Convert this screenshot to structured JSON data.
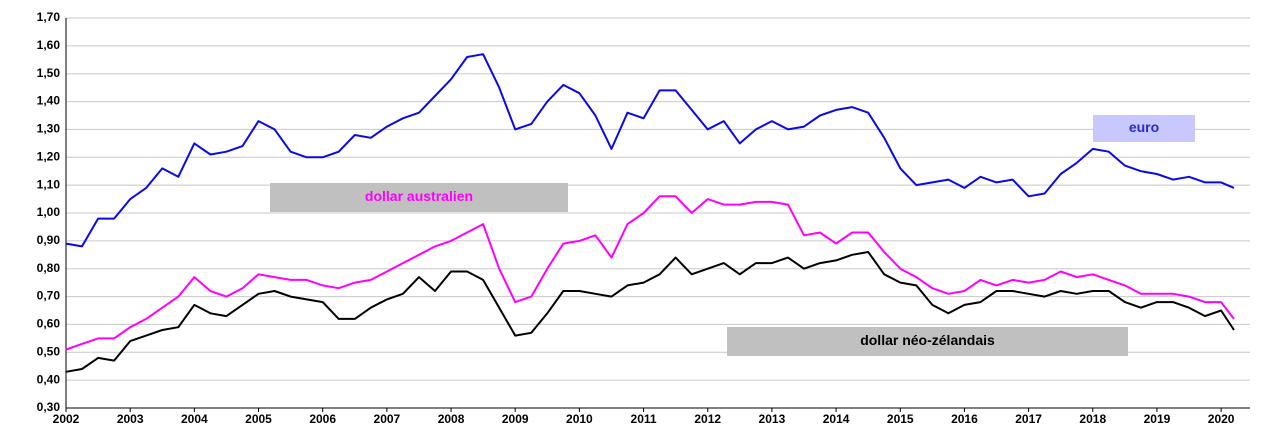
{
  "chart_data": {
    "type": "line",
    "x": [
      2002,
      2002.25,
      2002.5,
      2002.75,
      2003,
      2003.25,
      2003.5,
      2003.75,
      2004,
      2004.25,
      2004.5,
      2004.75,
      2005,
      2005.25,
      2005.5,
      2005.75,
      2006,
      2006.25,
      2006.5,
      2006.75,
      2007,
      2007.25,
      2007.5,
      2007.75,
      2008,
      2008.25,
      2008.5,
      2008.75,
      2009,
      2009.25,
      2009.5,
      2009.75,
      2010,
      2010.25,
      2010.5,
      2010.75,
      2011,
      2011.25,
      2011.5,
      2011.75,
      2012,
      2012.25,
      2012.5,
      2012.75,
      2013,
      2013.25,
      2013.5,
      2013.75,
      2014,
      2014.25,
      2014.5,
      2014.75,
      2015,
      2015.25,
      2015.5,
      2015.75,
      2016,
      2016.25,
      2016.5,
      2016.75,
      2017,
      2017.25,
      2017.5,
      2017.75,
      2018,
      2018.25,
      2018.5,
      2018.75,
      2019,
      2019.25,
      2019.5,
      2019.75,
      2020,
      2020.2
    ],
    "series": [
      {
        "name": "euro",
        "color": "#0a0ae6",
        "values": [
          0.89,
          0.88,
          0.98,
          0.98,
          1.05,
          1.09,
          1.16,
          1.13,
          1.25,
          1.21,
          1.22,
          1.24,
          1.33,
          1.3,
          1.22,
          1.2,
          1.2,
          1.22,
          1.28,
          1.27,
          1.31,
          1.34,
          1.36,
          1.42,
          1.48,
          1.56,
          1.57,
          1.45,
          1.3,
          1.32,
          1.4,
          1.46,
          1.43,
          1.35,
          1.23,
          1.36,
          1.34,
          1.44,
          1.44,
          1.37,
          1.3,
          1.33,
          1.25,
          1.3,
          1.33,
          1.3,
          1.31,
          1.35,
          1.37,
          1.38,
          1.36,
          1.27,
          1.16,
          1.1,
          1.11,
          1.12,
          1.09,
          1.13,
          1.11,
          1.12,
          1.06,
          1.07,
          1.14,
          1.18,
          1.23,
          1.22,
          1.17,
          1.15,
          1.14,
          1.12,
          1.13,
          1.11,
          1.11,
          1.09
        ]
      },
      {
        "name": "dollar australien",
        "color": "#ff00ff",
        "values": [
          0.51,
          0.53,
          0.55,
          0.55,
          0.59,
          0.62,
          0.66,
          0.7,
          0.77,
          0.72,
          0.7,
          0.73,
          0.78,
          0.77,
          0.76,
          0.76,
          0.74,
          0.73,
          0.75,
          0.76,
          0.79,
          0.82,
          0.85,
          0.88,
          0.9,
          0.93,
          0.96,
          0.8,
          0.68,
          0.7,
          0.8,
          0.89,
          0.9,
          0.92,
          0.84,
          0.96,
          1.0,
          1.06,
          1.06,
          1.0,
          1.05,
          1.03,
          1.03,
          1.04,
          1.04,
          1.03,
          0.92,
          0.93,
          0.89,
          0.93,
          0.93,
          0.86,
          0.8,
          0.77,
          0.73,
          0.71,
          0.72,
          0.76,
          0.74,
          0.76,
          0.75,
          0.76,
          0.79,
          0.77,
          0.78,
          0.76,
          0.74,
          0.71,
          0.71,
          0.71,
          0.7,
          0.68,
          0.68,
          0.62
        ]
      },
      {
        "name": "dollar néo-zélandais",
        "color": "#000000",
        "values": [
          0.43,
          0.44,
          0.48,
          0.47,
          0.54,
          0.56,
          0.58,
          0.59,
          0.67,
          0.64,
          0.63,
          0.67,
          0.71,
          0.72,
          0.7,
          0.69,
          0.68,
          0.62,
          0.62,
          0.66,
          0.69,
          0.71,
          0.77,
          0.72,
          0.79,
          0.79,
          0.76,
          0.66,
          0.56,
          0.57,
          0.64,
          0.72,
          0.72,
          0.71,
          0.7,
          0.74,
          0.75,
          0.78,
          0.84,
          0.78,
          0.8,
          0.82,
          0.78,
          0.82,
          0.82,
          0.84,
          0.8,
          0.82,
          0.83,
          0.85,
          0.86,
          0.78,
          0.75,
          0.74,
          0.67,
          0.64,
          0.67,
          0.68,
          0.72,
          0.72,
          0.71,
          0.7,
          0.72,
          0.71,
          0.72,
          0.72,
          0.68,
          0.66,
          0.68,
          0.68,
          0.66,
          0.63,
          0.65,
          0.58
        ]
      }
    ],
    "xlim": [
      2002,
      2020.45
    ],
    "xticks": [
      2002,
      2003,
      2004,
      2005,
      2006,
      2007,
      2008,
      2009,
      2010,
      2011,
      2012,
      2013,
      2014,
      2015,
      2016,
      2017,
      2018,
      2019,
      2020
    ],
    "ylim": [
      0.3,
      1.7
    ],
    "yticks": [
      {
        "value": 0.3,
        "label": "0,30"
      },
      {
        "value": 0.4,
        "label": "0,40"
      },
      {
        "value": 0.5,
        "label": "0,50"
      },
      {
        "value": 0.6,
        "label": "0,60"
      },
      {
        "value": 0.7,
        "label": "0,70"
      },
      {
        "value": 0.8,
        "label": "0,80"
      },
      {
        "value": 0.9,
        "label": "0,90"
      },
      {
        "value": 1.0,
        "label": "1,00"
      },
      {
        "value": 1.1,
        "label": "1,10"
      },
      {
        "value": 1.2,
        "label": "1,20"
      },
      {
        "value": 1.3,
        "label": "1,30"
      },
      {
        "value": 1.4,
        "label": "1,40"
      },
      {
        "value": 1.5,
        "label": "1,50"
      },
      {
        "value": 1.6,
        "label": "1,60"
      },
      {
        "value": 1.7,
        "label": "1,70"
      }
    ],
    "grid": true
  }
}
